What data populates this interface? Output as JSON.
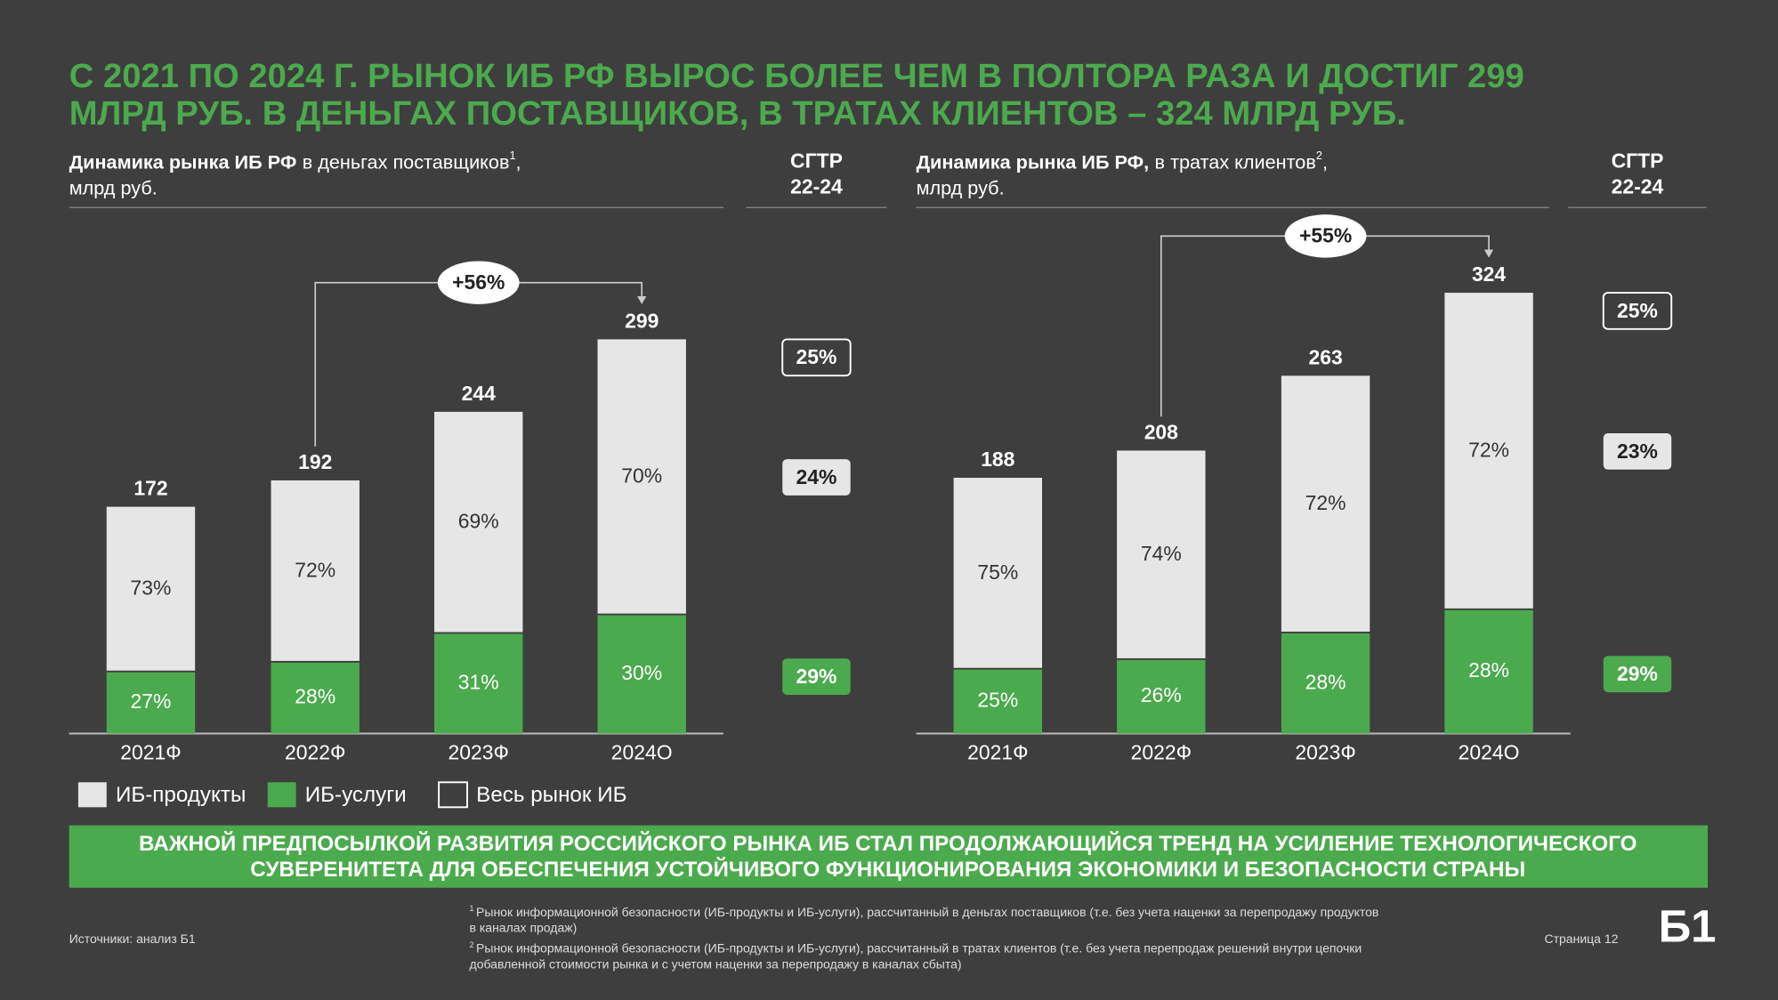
{
  "header": {
    "title": [
      "С 2021 ПО 2024 Г. РЫНОК ИБ РФ ВЫРОС БОЛЕЕ ЧЕМ В ПОЛТОРА РАЗА И ДОСТИГ 299",
      "МЛРД РУБ. В ДЕНЬГАХ ПОСТАВЩИКОВ, В ТРАТАХ КЛИЕНТОВ – 324 МЛРД РУБ."
    ]
  },
  "chart_data": [
    {
      "type": "bar",
      "stacked": true,
      "title": {
        "bold": "Динамика рынка ИБ РФ",
        "text": "в деньгах поставщиков",
        "note": "1",
        "tail": ",",
        "unit": "млрд руб."
      },
      "cagr_title": [
        "СГТР",
        "22-24"
      ],
      "growth_label": "+56%",
      "categories": [
        "2021Ф",
        "2022Ф",
        "2023Ф",
        "2024О"
      ],
      "series": [
        {
          "name": "ИБ-продукты",
          "color": "#e6e6e6",
          "values": [
            73,
            72,
            69,
            70
          ],
          "value_labels": [
            "73%",
            "72%",
            "69%",
            "70%"
          ],
          "cagr": 24,
          "cagr_label": "24%"
        },
        {
          "name": "ИБ-услуги",
          "color": "#4caa4e",
          "values": [
            27,
            28,
            31,
            30
          ],
          "value_labels": [
            "27%",
            "28%",
            "31%",
            "30%"
          ],
          "cagr": 29,
          "cagr_label": "29%"
        },
        {
          "name": "Весь рынок ИБ",
          "color": "#ffffff",
          "values": [
            172,
            192,
            244,
            299
          ],
          "cagr": 25,
          "cagr_label": "25%"
        }
      ]
    },
    {
      "type": "bar",
      "stacked": true,
      "title": {
        "bold": "Динамика рынка ИБ РФ,",
        "text": "в тратах клиентов",
        "note": "2",
        "tail": ",",
        "unit": "млрд руб."
      },
      "cagr_title": [
        "СГТР",
        "22-24"
      ],
      "growth_label": "+55%",
      "categories": [
        "2021Ф",
        "2022Ф",
        "2023Ф",
        "2024О"
      ],
      "series": [
        {
          "name": "ИБ-продукты",
          "color": "#e6e6e6",
          "values": [
            75,
            74,
            72,
            72
          ],
          "value_labels": [
            "75%",
            "74%",
            "72%",
            "72%"
          ],
          "cagr": 23,
          "cagr_label": "23%"
        },
        {
          "name": "ИБ-услуги",
          "color": "#4caa4e",
          "values": [
            25,
            26,
            28,
            28
          ],
          "value_labels": [
            "25%",
            "26%",
            "28%",
            "28%"
          ],
          "cagr": 29,
          "cagr_label": "29%"
        },
        {
          "name": "Весь рынок ИБ",
          "color": "#ffffff",
          "values": [
            188,
            208,
            263,
            324
          ],
          "cagr": 25,
          "cagr_label": "25%"
        }
      ]
    }
  ],
  "banner": [
    "ВАЖНОЙ ПРЕДПОСЫЛКОЙ РАЗВИТИЯ РОССИЙСКОГО РЫНКА ИБ СТАЛ ПРОДОЛЖАЮЩИЙСЯ ТРЕНД НА УСИЛЕНИЕ ТЕХНОЛОГИЧЕСКОГО",
    "СУВЕРЕНИТЕТА ДЛЯ ОБЕСПЕЧЕНИЯ УСТОЙЧИВОГО ФУНКЦИОНИРОВАНИЯ ЭКОНОМИКИ И БЕЗОПАСНОСТИ СТРАНЫ"
  ],
  "footer": {
    "source": "Источники: анализ Б1",
    "footnotes": [
      {
        "mark": "1",
        "lines": [
          "Рынок информационной безопасности (ИБ-продукты и ИБ-услуги), рассчитанный в деньгах поставщиков (т.е. без учета наценки за перепродажу продуктов",
          "в каналах продаж)"
        ]
      },
      {
        "mark": "2",
        "lines": [
          "Рынок информационной безопасности (ИБ-продукты и ИБ-услуги), рассчитанный в тратах клиентов (т.е. без учета перепродаж решений внутри цепочки",
          "добавленной стоимости рынка и с учетом наценки за перепродажу в каналах сбыта)"
        ]
      }
    ],
    "page": "Страница 12",
    "logo": "Б1"
  }
}
